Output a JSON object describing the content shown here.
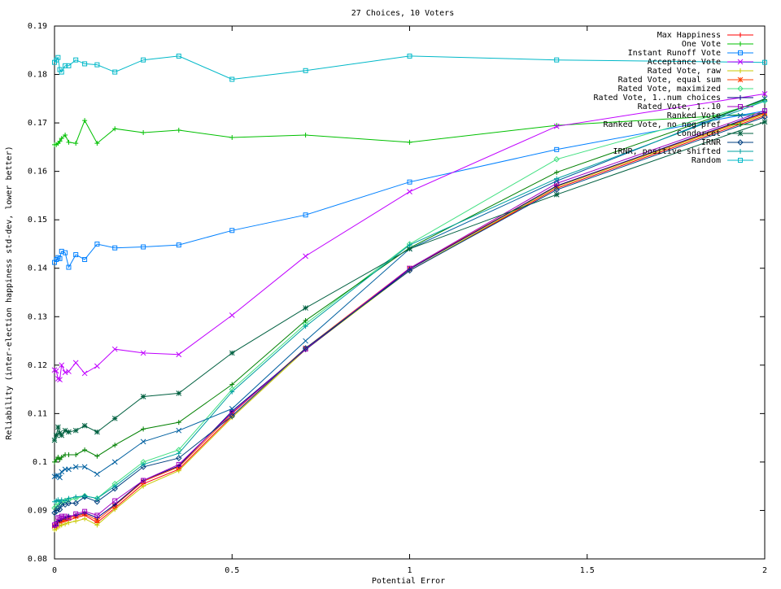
{
  "chart_data": {
    "type": "line",
    "title": "27 Choices, 10 Voters",
    "xlabel": "Potential Error",
    "ylabel": "Reliability (inter-election happiness std-dev, lower better)",
    "xlim": [
      0,
      2
    ],
    "ylim": [
      0.08,
      0.19
    ],
    "x_ticks": [
      "0",
      "0.5",
      "1",
      "1.5",
      "2"
    ],
    "y_ticks": [
      "0.08",
      "0.09",
      "0.1",
      "0.11",
      "0.12",
      "0.13",
      "0.14",
      "0.15",
      "0.16",
      "0.17",
      "0.18",
      "0.19"
    ],
    "grid": false,
    "legend_position": "top-right",
    "x": [
      0,
      0.005,
      0.01,
      0.015,
      0.02,
      0.03,
      0.04,
      0.06,
      0.085,
      0.12,
      0.17,
      0.25,
      0.35,
      0.5,
      0.707,
      1.0,
      1.414,
      2.0
    ],
    "series": [
      {
        "name": "Max Happiness",
        "color": "#ff0000",
        "marker": "plus",
        "values": [
          0.0865,
          0.0868,
          0.0875,
          0.0875,
          0.0876,
          0.0878,
          0.088,
          0.0885,
          0.089,
          0.0875,
          0.0905,
          0.0955,
          0.0985,
          0.1095,
          0.1235,
          0.1395,
          0.1565,
          0.1715
        ]
      },
      {
        "name": "One Vote",
        "color": "#00c000",
        "marker": "plus",
        "values": [
          0.1655,
          0.1655,
          0.1658,
          0.1662,
          0.1668,
          0.1675,
          0.166,
          0.1658,
          0.1705,
          0.1658,
          0.1688,
          0.168,
          0.1685,
          0.167,
          0.1675,
          0.166,
          0.1695,
          0.172
        ]
      },
      {
        "name": "Instant Runoff Vote",
        "color": "#0080ff",
        "marker": "box",
        "values": [
          0.1412,
          0.1418,
          0.1422,
          0.142,
          0.1435,
          0.1432,
          0.1402,
          0.1428,
          0.1418,
          0.145,
          0.1442,
          0.1444,
          0.1448,
          0.1478,
          0.151,
          0.1578,
          0.1645,
          0.1725
        ]
      },
      {
        "name": "Acceptance Vote",
        "color": "#c000ff",
        "marker": "cross",
        "values": [
          0.119,
          0.1188,
          0.1172,
          0.117,
          0.12,
          0.1185,
          0.1187,
          0.1205,
          0.1183,
          0.1198,
          0.1233,
          0.1225,
          0.1222,
          0.1303,
          0.1425,
          0.1558,
          0.1693,
          0.176
        ]
      },
      {
        "name": "Rated Vote, raw",
        "color": "#c8c800",
        "marker": "plus",
        "values": [
          0.086,
          0.0862,
          0.0868,
          0.0868,
          0.087,
          0.0872,
          0.0875,
          0.0878,
          0.0883,
          0.087,
          0.0902,
          0.095,
          0.0982,
          0.1092,
          0.1232,
          0.1395,
          0.1568,
          0.1718
        ]
      },
      {
        "name": "Rated Vote, equal sum",
        "color": "#ff4000",
        "marker": "star",
        "values": [
          0.0868,
          0.087,
          0.0878,
          0.0878,
          0.088,
          0.0882,
          0.0885,
          0.0888,
          0.0893,
          0.088,
          0.091,
          0.096,
          0.099,
          0.11,
          0.1235,
          0.14,
          0.157,
          0.172
        ]
      },
      {
        "name": "Rated Vote, maximized",
        "color": "#40e080",
        "marker": "diamond",
        "values": [
          0.0905,
          0.0908,
          0.0915,
          0.0912,
          0.0918,
          0.092,
          0.0922,
          0.0925,
          0.093,
          0.0925,
          0.0955,
          0.1,
          0.1025,
          0.115,
          0.1285,
          0.145,
          0.1625,
          0.1745
        ]
      },
      {
        "name": "Rated Vote, 1..num choices",
        "color": "#000080",
        "marker": "plus",
        "values": [
          0.0868,
          0.087,
          0.0878,
          0.088,
          0.0882,
          0.0885,
          0.0888,
          0.089,
          0.0895,
          0.0885,
          0.0912,
          0.0962,
          0.0992,
          0.1105,
          0.1232,
          0.1398,
          0.157,
          0.1722
        ]
      },
      {
        "name": "Rated Vote, 1..10",
        "color": "#a000c0",
        "marker": "box",
        "values": [
          0.087,
          0.0872,
          0.0885,
          0.0885,
          0.0888,
          0.0888,
          0.0885,
          0.0893,
          0.0898,
          0.089,
          0.092,
          0.0962,
          0.0995,
          0.1102,
          0.1233,
          0.14,
          0.1575,
          0.1725
        ]
      },
      {
        "name": "Ranked Vote",
        "color": "#0060a0",
        "marker": "cross",
        "values": [
          0.097,
          0.0972,
          0.0972,
          0.0968,
          0.098,
          0.0985,
          0.0985,
          0.099,
          0.099,
          0.0975,
          0.1,
          0.1042,
          0.1065,
          0.111,
          0.125,
          0.144,
          0.158,
          0.175
        ]
      },
      {
        "name": "Ranked Vote, no neg pref",
        "color": "#008000",
        "marker": "plus",
        "values": [
          0.1,
          0.1005,
          0.101,
          0.1005,
          0.101,
          0.1015,
          0.1015,
          0.1015,
          0.1025,
          0.1012,
          0.1035,
          0.1068,
          0.1082,
          0.116,
          0.1292,
          0.1442,
          0.1598,
          0.1748
        ]
      },
      {
        "name": "Condorcet",
        "color": "#006040",
        "marker": "star",
        "values": [
          0.1045,
          0.1055,
          0.1072,
          0.106,
          0.1055,
          0.1065,
          0.1062,
          0.1065,
          0.1075,
          0.1062,
          0.109,
          0.1135,
          0.1142,
          0.1225,
          0.1318,
          0.144,
          0.1552,
          0.1702
        ]
      },
      {
        "name": "IRNR",
        "color": "#004080",
        "marker": "diamond",
        "values": [
          0.0895,
          0.0898,
          0.0905,
          0.0902,
          0.0912,
          0.0912,
          0.0915,
          0.0915,
          0.0928,
          0.0918,
          0.0945,
          0.099,
          0.1008,
          0.1095,
          0.1235,
          0.1395,
          0.1562,
          0.1712
        ]
      },
      {
        "name": "IRNR, positive shifted",
        "color": "#00a0a0",
        "marker": "plus",
        "values": [
          0.0918,
          0.092,
          0.0922,
          0.0918,
          0.0922,
          0.092,
          0.0925,
          0.0928,
          0.093,
          0.0925,
          0.095,
          0.0995,
          0.1018,
          0.1145,
          0.128,
          0.1448,
          0.1585,
          0.1745
        ]
      },
      {
        "name": "Random",
        "color": "#00b8c8",
        "marker": "box",
        "values": [
          0.1825,
          0.183,
          0.1835,
          0.181,
          0.1805,
          0.1818,
          0.1818,
          0.183,
          0.1822,
          0.182,
          0.1805,
          0.183,
          0.1838,
          0.179,
          0.1808,
          0.1838,
          0.183,
          0.1825
        ]
      }
    ]
  }
}
